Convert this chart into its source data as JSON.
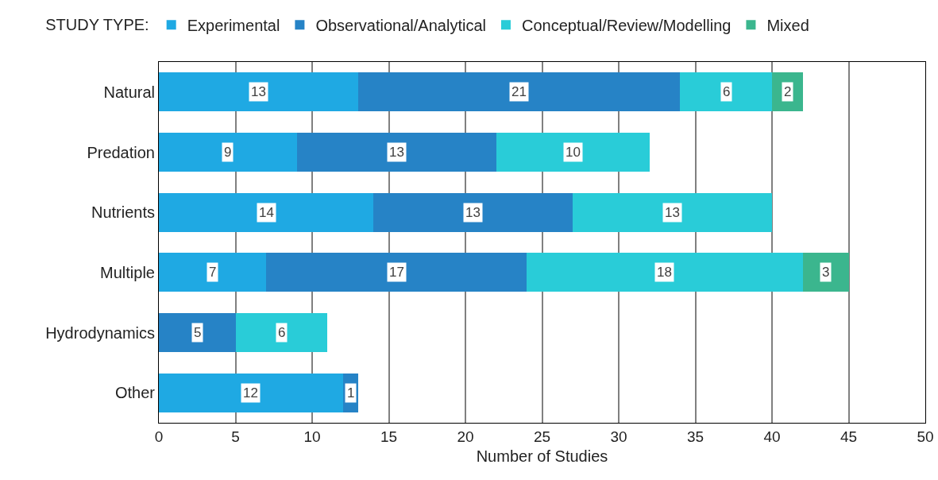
{
  "chart_data": {
    "type": "bar",
    "orientation": "horizontal",
    "stacked": true,
    "xlabel": "Number of Studies",
    "legend_title": "STUDY TYPE:",
    "legend": "top",
    "categories": [
      "Natural",
      "Predation",
      "Nutrients",
      "Multiple",
      "Hydrodynamics",
      "Other"
    ],
    "series": [
      {
        "name": "Experimental",
        "color": "#1fa9e3",
        "values": [
          13,
          9,
          14,
          7,
          null,
          12
        ]
      },
      {
        "name": "Observational/Analytical",
        "color": "#2683c6",
        "values": [
          21,
          13,
          13,
          17,
          5,
          1
        ]
      },
      {
        "name": "Conceptual/Review/Modelling",
        "color": "#29ccd8",
        "values": [
          6,
          10,
          13,
          18,
          6,
          null
        ]
      },
      {
        "name": "Mixed",
        "color": "#3bb68e",
        "values": [
          2,
          null,
          null,
          3,
          null,
          null
        ]
      }
    ],
    "xlim": [
      0,
      50
    ],
    "xticks": [
      0,
      5,
      10,
      15,
      20,
      25,
      30,
      35,
      40,
      45,
      50
    ],
    "grid": "x",
    "data_labels": true
  }
}
